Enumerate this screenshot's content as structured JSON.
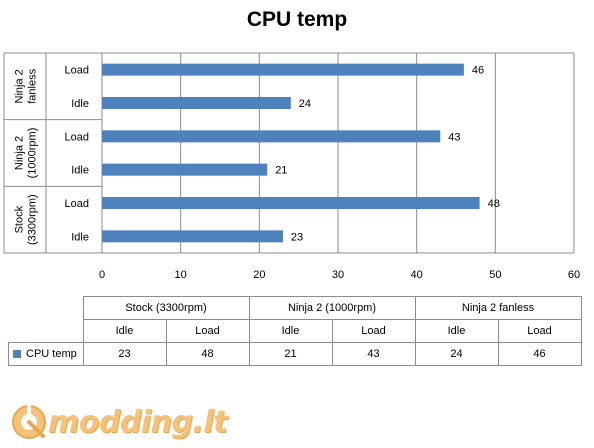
{
  "chart_data": {
    "type": "bar",
    "orientation": "horizontal",
    "title": "CPU temp",
    "groups": [
      "Ninja 2 fanless",
      "Ninja 2 (1000rpm)",
      "Stock (3300rpm)"
    ],
    "group_labels": [
      [
        "Ninja 2",
        "fanless"
      ],
      [
        "Ninja 2",
        "(1000rpm)"
      ],
      [
        "Stock",
        "(3300rpm)"
      ]
    ],
    "categories": [
      {
        "group": 0,
        "label": "Load"
      },
      {
        "group": 0,
        "label": "Idle"
      },
      {
        "group": 1,
        "label": "Load"
      },
      {
        "group": 1,
        "label": "Idle"
      },
      {
        "group": 2,
        "label": "Load"
      },
      {
        "group": 2,
        "label": "Idle"
      }
    ],
    "series": [
      {
        "name": "CPU temp",
        "values": [
          46,
          24,
          43,
          21,
          48,
          23
        ],
        "color": "#4f81bd"
      }
    ],
    "xlim": [
      0,
      60
    ],
    "xticks": [
      "0",
      "10",
      "20",
      "30",
      "40",
      "50",
      "60"
    ],
    "grid": true,
    "data_labels": true,
    "legend": "data-table"
  },
  "table": {
    "groups": [
      "Stock (3300rpm)",
      "Ninja 2 (1000rpm)",
      "Ninja 2 fanless"
    ],
    "subheaders": [
      "Idle",
      "Load",
      "Idle",
      "Load",
      "Idle",
      "Load"
    ],
    "series_name": "CPU temp",
    "values": [
      "23",
      "48",
      "21",
      "43",
      "24",
      "46"
    ]
  },
  "logo": {
    "text": "modding.lt",
    "color": "#f4c27a"
  }
}
